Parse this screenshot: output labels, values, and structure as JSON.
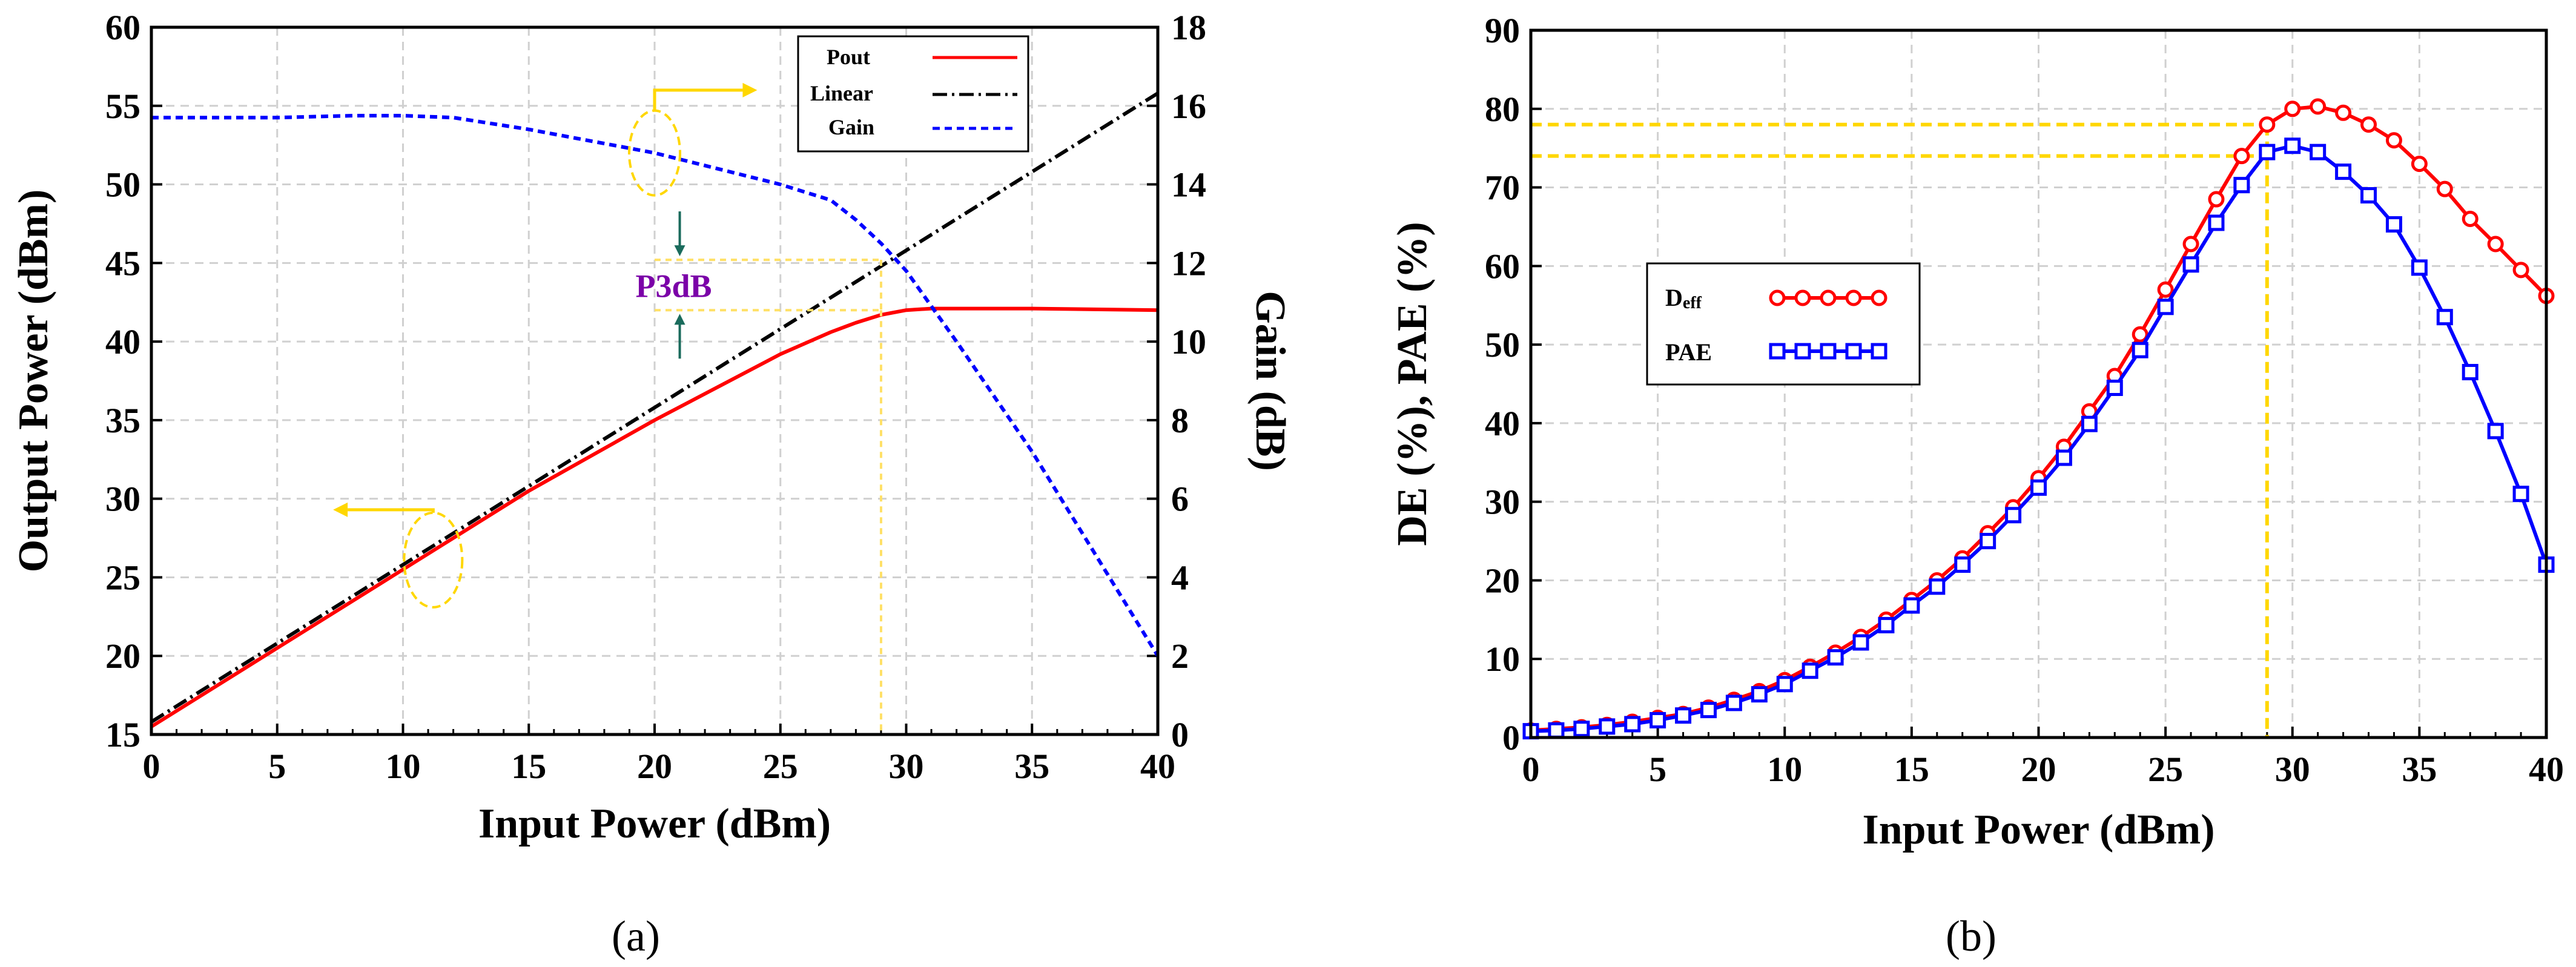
{
  "chart_data": [
    {
      "id": "a",
      "type": "line",
      "caption": "(a)",
      "xlabel": "Input Power (dBm)",
      "ylabel": "Output Power (dBm)",
      "y2label": "Gain (dB)",
      "xlim": [
        0,
        40
      ],
      "ylim": [
        15,
        60
      ],
      "y2lim": [
        0,
        18
      ],
      "xticks": [
        0,
        5,
        10,
        15,
        20,
        25,
        30,
        35,
        40
      ],
      "yticks": [
        15,
        20,
        25,
        30,
        35,
        40,
        45,
        50,
        55,
        60
      ],
      "y2ticks": [
        0,
        2,
        4,
        6,
        8,
        10,
        12,
        14,
        16,
        18
      ],
      "grid": true,
      "legend_position": "top-right",
      "series": [
        {
          "name": "Pout",
          "axis": "left",
          "color": "#ff0000",
          "style": "solid",
          "x": [
            0,
            5,
            10,
            15,
            20,
            25,
            27,
            28,
            29,
            30,
            31,
            35,
            40
          ],
          "y": [
            15.5,
            20.5,
            25.5,
            30.5,
            35.0,
            39.2,
            40.6,
            41.2,
            41.7,
            42.0,
            42.1,
            42.1,
            42.0
          ]
        },
        {
          "name": "Linear",
          "axis": "left",
          "color": "#000000",
          "style": "dashdot",
          "x": [
            0,
            40
          ],
          "y": [
            15.8,
            55.8
          ]
        },
        {
          "name": "Gain",
          "axis": "right",
          "color": "#0000ff",
          "style": "dashed",
          "x": [
            0,
            5,
            8,
            10,
            12,
            15,
            20,
            25,
            27,
            28,
            29,
            30,
            32,
            35,
            40
          ],
          "y": [
            15.7,
            15.7,
            15.75,
            15.75,
            15.7,
            15.4,
            14.8,
            14.0,
            13.6,
            13.1,
            12.5,
            11.8,
            10.0,
            7.2,
            2.0
          ]
        }
      ],
      "annotations": {
        "p3db_label": "P3dB",
        "p3db_x": 29,
        "p3db_y_top": 45.2,
        "p3db_y_bottom": 42.0,
        "p3db_label_x": 21,
        "arrow_color": "#ffd700",
        "marker_color": "#ffe066",
        "p3db_text_color": "#7b00a8"
      }
    },
    {
      "id": "b",
      "type": "line",
      "caption": "(b)",
      "xlabel": "Input Power (dBm)",
      "ylabel": "DE (%), PAE (%)",
      "xlim": [
        0,
        40
      ],
      "ylim": [
        0,
        90
      ],
      "xticks": [
        0,
        5,
        10,
        15,
        20,
        25,
        30,
        35,
        40
      ],
      "yticks": [
        0,
        10,
        20,
        30,
        40,
        50,
        60,
        70,
        80,
        90
      ],
      "grid": true,
      "legend_position": "middle-left",
      "marker_x": 29,
      "marker_y": [
        78,
        74
      ],
      "marker_color": "#ffd700",
      "series": [
        {
          "name": "Deff",
          "name_main": "D",
          "name_sub": "eff",
          "color": "#ff0000",
          "marker": "circle",
          "x": [
            0,
            1,
            2,
            3,
            4,
            5,
            6,
            7,
            8,
            9,
            10,
            11,
            12,
            13,
            14,
            15,
            16,
            17,
            18,
            19,
            20,
            21,
            22,
            23,
            24,
            25,
            26,
            27,
            28,
            29,
            30,
            31,
            32,
            33,
            34,
            35,
            36,
            37,
            38,
            39,
            40
          ],
          "y": [
            0.9,
            1.1,
            1.3,
            1.6,
            2.0,
            2.5,
            3.0,
            3.8,
            4.8,
            5.9,
            7.3,
            9.0,
            10.8,
            12.8,
            15.0,
            17.5,
            20.0,
            22.8,
            26.0,
            29.3,
            33.0,
            37.0,
            41.5,
            46.0,
            51.3,
            57.0,
            62.8,
            68.5,
            74.0,
            78.0,
            80.0,
            80.3,
            79.5,
            78.0,
            76.0,
            73.0,
            69.8,
            66.0,
            62.8,
            59.5,
            56.2
          ]
        },
        {
          "name": "PAE",
          "color": "#0000ff",
          "marker": "square",
          "x": [
            0,
            1,
            2,
            3,
            4,
            5,
            6,
            7,
            8,
            9,
            10,
            11,
            12,
            13,
            14,
            15,
            16,
            17,
            18,
            19,
            20,
            21,
            22,
            23,
            24,
            25,
            26,
            27,
            28,
            29,
            30,
            31,
            32,
            33,
            34,
            35,
            36,
            37,
            38,
            39,
            40
          ],
          "y": [
            0.8,
            0.9,
            1.1,
            1.4,
            1.7,
            2.2,
            2.8,
            3.5,
            4.4,
            5.5,
            6.8,
            8.5,
            10.2,
            12.1,
            14.3,
            16.8,
            19.2,
            22.0,
            25.0,
            28.3,
            31.8,
            35.6,
            39.9,
            44.5,
            49.3,
            54.8,
            60.2,
            65.5,
            70.3,
            74.5,
            75.3,
            74.5,
            72.0,
            69.0,
            65.3,
            59.8,
            53.5,
            46.5,
            39.0,
            31.0,
            22.0
          ]
        }
      ]
    }
  ]
}
